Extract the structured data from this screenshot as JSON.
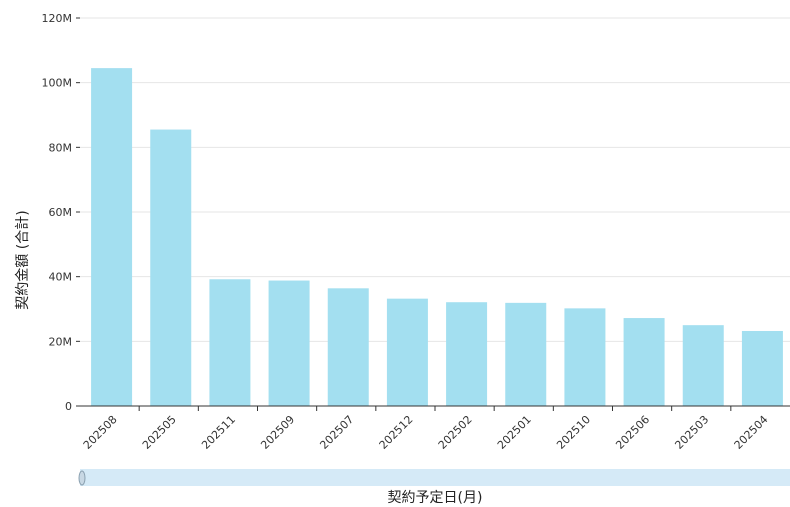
{
  "chart_data": {
    "type": "bar",
    "title": "",
    "xlabel": "契約予定日(月)",
    "ylabel": "契約金額 (合計)",
    "categories": [
      "202508",
      "202505",
      "202511",
      "202509",
      "202507",
      "202512",
      "202502",
      "202501",
      "202510",
      "202506",
      "202503",
      "202504"
    ],
    "series": [
      {
        "values": [
          104.5,
          85.5,
          39.2,
          38.8,
          36.4,
          33.2,
          32.1,
          31.9,
          30.2,
          27.2,
          25.0,
          23.2
        ]
      }
    ],
    "value_unit": "M",
    "ylim": [
      0,
      120
    ],
    "yticks": [
      0,
      20,
      40,
      60,
      80,
      100,
      120
    ],
    "ytick_labels": [
      "0",
      "20M",
      "40M",
      "60M",
      "80M",
      "100M",
      "120M"
    ],
    "grid": true,
    "legend": "none",
    "bar_color": "#a3dff0",
    "scrollbar_color": "#d5eaf7"
  }
}
